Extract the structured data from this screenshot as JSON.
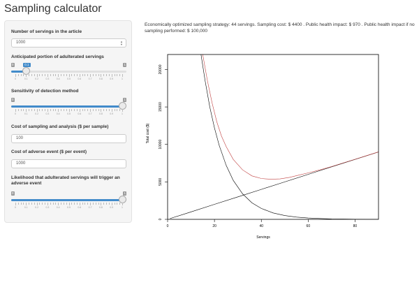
{
  "app": {
    "title": "Sampling calculator"
  },
  "sidebar": {
    "servings": {
      "label": "Number of servings in the article",
      "value": "1000"
    },
    "adulterated": {
      "label": "Anticipated portion of adulterated servings",
      "min": "0",
      "max": "1",
      "value": 0.1,
      "value_label": "0.1"
    },
    "sensitivity": {
      "label": "Sensitivity of detection method",
      "min": "0",
      "max": "1",
      "value": 1,
      "value_label": "1"
    },
    "cost_sampling": {
      "label": "Cost of sampling and analysis ($ per sample)",
      "value": "100"
    },
    "cost_event": {
      "label": "Cost of adverse event ($ per event)",
      "value": "1000"
    },
    "likelihood": {
      "label": "Likelihood that adulterated servings will trigger an adverse event",
      "min": "0",
      "max": "1",
      "value": 1,
      "value_label": "1"
    },
    "slider_ticks": [
      "0",
      "0.1",
      "0.2",
      "0.3",
      "0.4",
      "0.5",
      "0.6",
      "0.7",
      "0.8",
      "0.9",
      "1"
    ]
  },
  "summary": {
    "text": "Economically optimized sampling strategy: 44 servings. Sampling cost: $ 4400 . Public health impact: $ 970 . Public health impact if no sampling performed: $ 100,000"
  },
  "chart_data": {
    "type": "line",
    "xlabel": "Servings",
    "ylabel": "Total cost ($)",
    "xlim": [
      0,
      90
    ],
    "ylim": [
      0,
      22000
    ],
    "x_ticks": [
      "0",
      "20",
      "40",
      "60",
      "80"
    ],
    "y_ticks": [
      "0",
      "5000",
      "10000",
      "15000",
      "20000"
    ],
    "series": [
      {
        "x": [
          1,
          10,
          20,
          30,
          40,
          50,
          60,
          70,
          80,
          90
        ],
        "y": [
          100,
          1000,
          2000,
          3000,
          4000,
          5000,
          6000,
          7000,
          8000,
          9000
        ],
        "color": "#000000"
      },
      {
        "x": [
          14,
          16,
          18,
          20,
          22,
          25,
          28,
          32,
          36,
          40,
          45,
          50,
          55,
          60,
          65,
          70,
          75,
          80,
          85,
          90
        ],
        "y": [
          22500,
          18500,
          15000,
          12200,
          9900,
          7200,
          5200,
          3400,
          2200,
          1450,
          860,
          500,
          300,
          180,
          110,
          60,
          40,
          20,
          10,
          5
        ],
        "color": "#000000"
      },
      {
        "x": [
          15,
          17,
          19,
          21,
          23,
          25,
          28,
          32,
          36,
          40,
          44,
          48,
          52,
          56,
          60,
          65,
          70,
          75,
          80,
          85,
          90
        ],
        "y": [
          22000,
          18500,
          15500,
          13000,
          11100,
          9700,
          8000,
          6600,
          5800,
          5450,
          5350,
          5400,
          5600,
          5900,
          6200,
          6600,
          7050,
          7540,
          8020,
          8510,
          9005
        ],
        "color": "#c04040"
      }
    ]
  }
}
